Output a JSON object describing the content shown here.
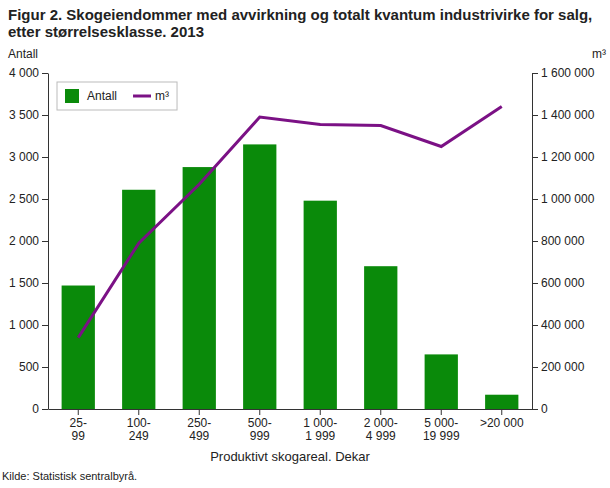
{
  "chart_data": {
    "type": "bar",
    "title": "Figur 2. Skogeiendommer med avvirkning og totalt kvantum industrivirke for salg, etter størrelsesklasse. 2013",
    "y_label": "Antall",
    "y2_label": "m³",
    "x_label": "Produktivt skogareal. Dekar",
    "source": "Kilde: Statistisk sentralbyrå.",
    "categories": [
      "25-\n99",
      "100-\n249",
      "250-\n499",
      "500-\n999",
      "1 000-\n1 999",
      "2 000-\n4 999",
      "5 000-\n19 999",
      ">20 000"
    ],
    "series": [
      {
        "name": "Antall",
        "type": "bar",
        "color": "#0a8a0a",
        "values": [
          1470,
          2610,
          2880,
          3150,
          2480,
          1700,
          650,
          170
        ]
      },
      {
        "name": "m³",
        "type": "line",
        "axis": "y2",
        "color": "#7b1185",
        "values": [
          340000,
          790000,
          1070000,
          1390000,
          1355000,
          1350000,
          1250000,
          1440000
        ]
      }
    ],
    "ylim": [
      0,
      4000
    ],
    "yticks": [
      0,
      500,
      {
        "value": 1000,
        "label": "1 000"
      },
      {
        "value": 1500,
        "label": "1 500"
      },
      {
        "value": 2000,
        "label": "2 000"
      },
      {
        "value": 2500,
        "label": "2 500"
      },
      {
        "value": 3000,
        "label": "3 000"
      },
      {
        "value": 3500,
        "label": "3 500"
      },
      {
        "value": 4000,
        "label": "4 000"
      }
    ],
    "y2lim": [
      0,
      1600000
    ],
    "y2ticks": [
      0,
      {
        "value": 200000,
        "label": "200 000"
      },
      {
        "value": 400000,
        "label": "400 000"
      },
      {
        "value": 600000,
        "label": "600 000"
      },
      {
        "value": 800000,
        "label": "800 000"
      },
      {
        "value": 1000000,
        "label": "1 000 000"
      },
      {
        "value": 1200000,
        "label": "1 200 000"
      },
      {
        "value": 1400000,
        "label": "1 400 000"
      },
      {
        "value": 1600000,
        "label": "1 600 000"
      }
    ],
    "legend": "top-left",
    "grid": false
  }
}
